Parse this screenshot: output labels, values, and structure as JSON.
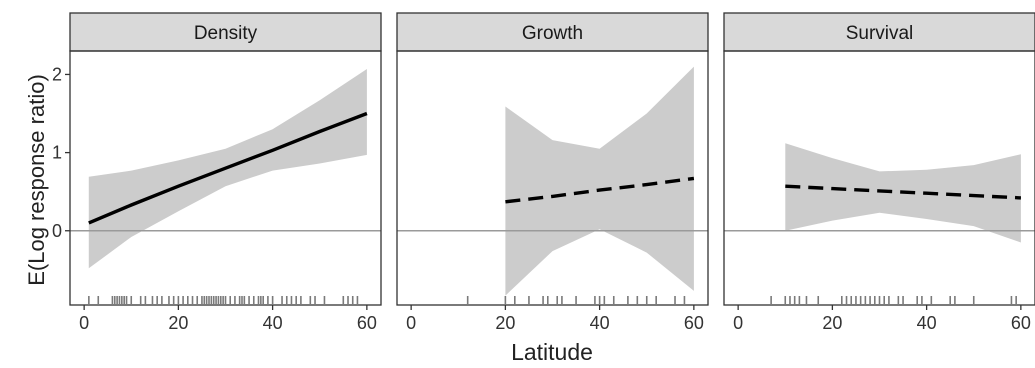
{
  "chart_data": {
    "type": "line",
    "xlabel": "Latitude",
    "ylabel": "E(Log response ratio)",
    "xlim": [
      -3,
      63
    ],
    "ylim": [
      -0.95,
      2.3
    ],
    "x_ticks": [
      0,
      20,
      40,
      60
    ],
    "y_ticks": [
      0,
      1,
      2
    ],
    "reference_line_y": 0,
    "grid": false,
    "colors": {
      "strip_fill": "#d9d9d9",
      "ribbon": "#cccccc",
      "line": "#000000",
      "reference_line": "#9a9a9a",
      "rug": "#7a7a7a",
      "axis": "#333333"
    },
    "panels": [
      {
        "title": "Density",
        "line_style": "solid",
        "x": [
          1,
          10,
          20,
          30,
          40,
          50,
          60
        ],
        "fit": [
          0.1,
          0.33,
          0.57,
          0.8,
          1.03,
          1.27,
          1.5
        ],
        "lower": [
          -0.48,
          -0.08,
          0.25,
          0.57,
          0.77,
          0.86,
          0.97
        ],
        "upper": [
          0.69,
          0.77,
          0.9,
          1.05,
          1.3,
          1.67,
          2.07
        ],
        "rug": [
          1,
          3,
          6,
          6.5,
          7,
          7.5,
          8,
          8.5,
          9,
          10,
          12,
          13,
          14.5,
          15.5,
          16.5,
          18,
          19,
          20,
          21,
          22,
          23,
          24,
          25,
          25.5,
          26,
          26.5,
          27,
          27.5,
          28,
          28.5,
          29,
          29.5,
          30,
          31,
          32,
          33,
          33.5,
          34,
          35,
          36,
          37,
          37.5,
          38,
          39,
          40,
          42,
          43,
          44,
          45,
          46,
          48,
          49,
          51,
          55,
          56,
          57,
          58
        ]
      },
      {
        "title": "Growth",
        "line_style": "dashed",
        "x": [
          20,
          30,
          40,
          50,
          60
        ],
        "fit": [
          0.37,
          0.44,
          0.52,
          0.59,
          0.67
        ],
        "lower": [
          -0.83,
          -0.26,
          0.02,
          -0.28,
          -0.77
        ],
        "upper": [
          1.59,
          1.16,
          1.05,
          1.5,
          2.1
        ],
        "rug": [
          12,
          20,
          22,
          25,
          28,
          29,
          31,
          32,
          35,
          39,
          40,
          41,
          43,
          46,
          48,
          50,
          52,
          56,
          58
        ]
      },
      {
        "title": "Survival",
        "line_style": "dashed",
        "x": [
          10,
          20,
          30,
          40,
          50,
          60
        ],
        "fit": [
          0.57,
          0.54,
          0.51,
          0.48,
          0.45,
          0.42
        ],
        "lower": [
          0.0,
          0.13,
          0.23,
          0.15,
          0.06,
          -0.15
        ],
        "upper": [
          1.12,
          0.93,
          0.76,
          0.78,
          0.84,
          0.98
        ],
        "rug": [
          7,
          10,
          11,
          12,
          13,
          14.5,
          17,
          22,
          23,
          24,
          25,
          26,
          27,
          28,
          29,
          30,
          31,
          32,
          34,
          35,
          38,
          39,
          41,
          45,
          46,
          50,
          58,
          59
        ]
      }
    ]
  }
}
